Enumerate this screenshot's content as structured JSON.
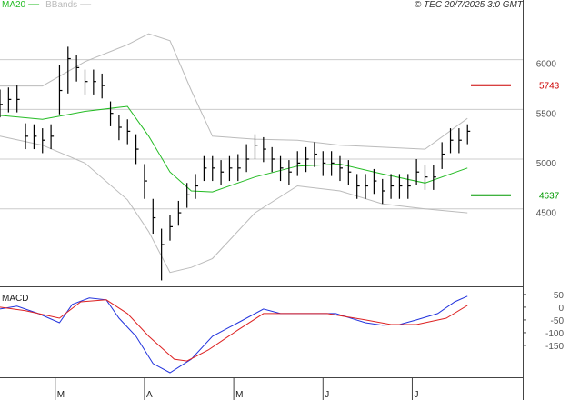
{
  "chart_data": [
    {
      "type": "ohlc",
      "source": "© TEC 20/7/2025 3:0 GMT",
      "color": "#000000",
      "x": [
        0,
        2,
        4,
        6,
        8,
        10,
        12,
        14,
        16,
        18,
        20,
        22,
        24,
        26,
        28,
        30,
        32,
        34,
        36,
        38,
        40,
        42,
        44,
        46,
        48,
        50,
        52,
        54,
        56,
        58,
        60,
        62,
        64,
        66,
        68,
        70,
        72,
        74,
        76,
        78,
        80,
        82,
        84,
        86,
        88,
        90,
        92,
        94,
        96,
        98,
        100,
        102,
        104,
        106,
        108,
        110
      ],
      "high": [
        5700,
        5720,
        5740,
        5360,
        5350,
        5310,
        5350,
        5950,
        6130,
        6050,
        5900,
        5900,
        5860,
        5580,
        5440,
        5400,
        5250,
        4950,
        4600,
        4300,
        4440,
        4580,
        4760,
        4850,
        5030,
        5030,
        4990,
        5030,
        5050,
        5150,
        5250,
        5220,
        5120,
        5030,
        4990,
        5080,
        5120,
        5170,
        5080,
        5080,
        5030,
        4990,
        4850,
        4850,
        4900,
        4800,
        4850,
        4850,
        4850,
        5000,
        4940,
        4940,
        5170,
        5310,
        5310,
        5350
      ],
      "low": [
        5420,
        5470,
        5470,
        5100,
        5100,
        5060,
        5100,
        5450,
        5660,
        5780,
        5650,
        5650,
        5610,
        5330,
        5190,
        5150,
        4950,
        4600,
        4250,
        3780,
        4180,
        4330,
        4510,
        4600,
        4780,
        4780,
        4740,
        4780,
        4780,
        4870,
        5000,
        4970,
        4870,
        4780,
        4740,
        4830,
        4870,
        4920,
        4830,
        4830,
        4780,
        4740,
        4600,
        4600,
        4650,
        4550,
        4600,
        4600,
        4600,
        4740,
        4690,
        4690,
        4900,
        5060,
        5060,
        5150
      ],
      "close": [
        5550,
        5600,
        5600,
        5230,
        5230,
        5190,
        5230,
        5690,
        6010,
        5920,
        5780,
        5780,
        5740,
        5460,
        5320,
        5280,
        5100,
        4780,
        4410,
        4140,
        4320,
        4460,
        4640,
        4730,
        4910,
        4910,
        4870,
        4910,
        4910,
        5000,
        5140,
        5100,
        5000,
        4910,
        4870,
        4960,
        5000,
        5050,
        4960,
        4960,
        4910,
        4870,
        4730,
        4730,
        4780,
        4680,
        4730,
        4730,
        4730,
        4870,
        4820,
        4820,
        5050,
        5190,
        5190,
        5280
      ],
      "lines": [
        {
          "name": "MA20",
          "color": "#22bb22",
          "x": [
            0,
            10,
            20,
            30,
            35,
            40,
            45,
            50,
            60,
            70,
            80,
            90,
            100,
            110
          ],
          "values": [
            5440,
            5400,
            5480,
            5530,
            5230,
            4870,
            4680,
            4670,
            4820,
            4930,
            4950,
            4850,
            4760,
            4910
          ]
        },
        {
          "name": "BBands",
          "color": "#bbbbbb",
          "x": [
            0,
            10,
            20,
            30,
            35,
            40,
            45,
            50,
            60,
            70,
            80,
            90,
            100,
            110
          ],
          "upper": [
            5735,
            5735,
            5980,
            6150,
            6260,
            6190,
            5690,
            5230,
            5200,
            5190,
            5140,
            5120,
            5100,
            5410
          ],
          "lower": [
            5230,
            5140,
            4960,
            4590,
            4270,
            3860,
            3910,
            4000,
            4460,
            4730,
            4680,
            4550,
            4500,
            4460
          ]
        }
      ],
      "annotations": [
        {
          "value": 5743,
          "color": "#cc0000"
        },
        {
          "value": 4637,
          "color": "#009900"
        }
      ],
      "xlim": [
        0,
        123
      ],
      "ylim": [
        3720,
        6600
      ],
      "yticks": [
        4500,
        5000,
        5500,
        6000
      ],
      "grid": true
    },
    {
      "type": "line",
      "title": "MACD",
      "series": [
        {
          "color": "#2233dd",
          "x": [
            0,
            4,
            9,
            14,
            17,
            21,
            25,
            28,
            32,
            36,
            40,
            45,
            50,
            56,
            62,
            66,
            73,
            79,
            86,
            90,
            94,
            98,
            103,
            107,
            110
          ],
          "values": [
            -7,
            4,
            -25,
            -61,
            11,
            36,
            29,
            -43,
            -114,
            -221,
            -257,
            -204,
            -114,
            -61,
            -7,
            -25,
            -25,
            -25,
            -61,
            -71,
            -68,
            -50,
            -25,
            21,
            43
          ]
        },
        {
          "color": "#dd2222",
          "x": [
            0,
            6,
            14,
            19,
            25,
            30,
            35,
            41,
            44,
            49,
            56,
            62,
            68,
            77,
            86,
            92,
            98,
            105,
            110
          ],
          "values": [
            0,
            -14,
            -43,
            21,
            29,
            -25,
            -114,
            -204,
            -211,
            -168,
            -89,
            -25,
            -25,
            -25,
            -50,
            -68,
            -68,
            -43,
            7
          ]
        }
      ],
      "xlim": [
        0,
        123
      ],
      "ylim": [
        -275,
        71
      ],
      "yticks": [
        50,
        0,
        -50,
        -100,
        -150
      ],
      "xticks": [
        {
          "value": 13,
          "label": "M"
        },
        {
          "value": 34,
          "label": "A"
        },
        {
          "value": 55,
          "label": "M"
        },
        {
          "value": 76,
          "label": "J"
        },
        {
          "value": 97,
          "label": "J"
        }
      ]
    }
  ]
}
